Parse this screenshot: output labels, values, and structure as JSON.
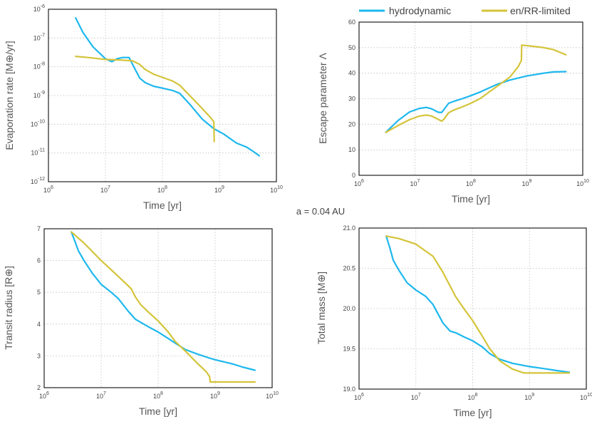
{
  "figure_label": "a = 0.04 AU",
  "legend": {
    "items": [
      {
        "label": "hydrodynamic",
        "color": "#1db8ee"
      },
      {
        "label": "en/RR-limited",
        "color": "#d4c43a"
      }
    ]
  },
  "chart_data": [
    {
      "type": "line",
      "id": "evap",
      "xlabel": "Time [yr]",
      "ylabel": "Evaporation rate [M⊕/yr]",
      "xscale": "log",
      "yscale": "log",
      "xlim": [
        1000000.0,
        10000000000.0
      ],
      "ylim": [
        1e-12,
        1e-06
      ],
      "xticks": [
        {
          "v": 1000000.0,
          "b": "10",
          "e": "6"
        },
        {
          "v": 10000000.0,
          "b": "10",
          "e": "7"
        },
        {
          "v": 100000000.0,
          "b": "10",
          "e": "8"
        },
        {
          "v": 1000000000.0,
          "b": "10",
          "e": "9"
        },
        {
          "v": 10000000000.0,
          "b": "10",
          "e": "10"
        }
      ],
      "yticks": [
        {
          "v": 1e-12,
          "b": "10",
          "e": "-12"
        },
        {
          "v": 1e-11,
          "b": "10",
          "e": "-11"
        },
        {
          "v": 1e-10,
          "b": "10",
          "e": "-10"
        },
        {
          "v": 1e-09,
          "b": "10",
          "e": "-9"
        },
        {
          "v": 1e-08,
          "b": "10",
          "e": "-8"
        },
        {
          "v": 1e-07,
          "b": "10",
          "e": "-7"
        },
        {
          "v": 1e-06,
          "b": "10",
          "e": "-6"
        }
      ],
      "series": [
        {
          "name": "hydrodynamic",
          "color": "#1db8ee",
          "points": [
            [
              3000000.0,
              5e-07
            ],
            [
              4000000.0,
              1.6e-07
            ],
            [
              6000000.0,
              5e-08
            ],
            [
              10000000.0,
              1.9e-08
            ],
            [
              13000000.0,
              1.5e-08
            ],
            [
              16000000.0,
              1.9e-08
            ],
            [
              20000000.0,
              2.1e-08
            ],
            [
              26000000.0,
              2.1e-08
            ],
            [
              30000000.0,
              1.2e-08
            ],
            [
              40000000.0,
              4e-09
            ],
            [
              50000000.0,
              2.8e-09
            ],
            [
              70000000.0,
              2.1e-09
            ],
            [
              100000000.0,
              1.8e-09
            ],
            [
              150000000.0,
              1.5e-09
            ],
            [
              200000000.0,
              1.2e-09
            ],
            [
              300000000.0,
              5e-10
            ],
            [
              500000000.0,
              1.5e-10
            ],
            [
              800000000.0,
              7e-11
            ],
            [
              1200000000.0,
              4.5e-11
            ],
            [
              2000000000.0,
              2.2e-11
            ],
            [
              3000000000.0,
              1.6e-11
            ],
            [
              4000000000.0,
              1.1e-11
            ],
            [
              5000000000.0,
              8e-12
            ]
          ]
        },
        {
          "name": "en/RR-limited",
          "color": "#d4c43a",
          "points": [
            [
              3000000.0,
              2.3e-08
            ],
            [
              5000000.0,
              2.1e-08
            ],
            [
              10000000.0,
              1.8e-08
            ],
            [
              20000000.0,
              1.7e-08
            ],
            [
              30000000.0,
              1.6e-08
            ],
            [
              40000000.0,
              1.2e-08
            ],
            [
              50000000.0,
              8e-09
            ],
            [
              70000000.0,
              5.5e-09
            ],
            [
              100000000.0,
              4.3e-09
            ],
            [
              150000000.0,
              3.2e-09
            ],
            [
              200000000.0,
              2.3e-09
            ],
            [
              300000000.0,
              1e-09
            ],
            [
              500000000.0,
              3.5e-10
            ],
            [
              700000000.0,
              1.7e-10
            ],
            [
              800000000.0,
              1.2e-10
            ],
            [
              810000000.0,
              2.5e-11
            ]
          ]
        }
      ]
    },
    {
      "type": "line",
      "id": "escape",
      "xlabel": "Time [yr]",
      "ylabel": "Escape parameter Λ",
      "xscale": "log",
      "yscale": "linear",
      "xlim": [
        1000000.0,
        10000000000.0
      ],
      "ylim": [
        0,
        60
      ],
      "xticks": [
        {
          "v": 1000000.0,
          "b": "10",
          "e": "6"
        },
        {
          "v": 10000000.0,
          "b": "10",
          "e": "7"
        },
        {
          "v": 100000000.0,
          "b": "10",
          "e": "8"
        },
        {
          "v": 1000000000.0,
          "b": "10",
          "e": "9"
        },
        {
          "v": 10000000000.0,
          "b": "10",
          "e": "10"
        }
      ],
      "yticks": [
        {
          "v": 0,
          "b": "0"
        },
        {
          "v": 10,
          "b": "10"
        },
        {
          "v": 20,
          "b": "20"
        },
        {
          "v": 30,
          "b": "30"
        },
        {
          "v": 40,
          "b": "40"
        },
        {
          "v": 50,
          "b": "50"
        },
        {
          "v": 60,
          "b": "60"
        }
      ],
      "series": [
        {
          "name": "hydrodynamic",
          "color": "#1db8ee",
          "points": [
            [
              3000000.0,
              16.8
            ],
            [
              5000000.0,
              21.5
            ],
            [
              8000000.0,
              24.8
            ],
            [
              12000000.0,
              26.2
            ],
            [
              16000000.0,
              26.6
            ],
            [
              20000000.0,
              26.0
            ],
            [
              26000000.0,
              24.7
            ],
            [
              30000000.0,
              24.6
            ],
            [
              35000000.0,
              26.5
            ],
            [
              40000000.0,
              28.2
            ],
            [
              50000000.0,
              29.0
            ],
            [
              70000000.0,
              30.0
            ],
            [
              100000000.0,
              31.2
            ],
            [
              150000000.0,
              32.7
            ],
            [
              200000000.0,
              34.0
            ],
            [
              300000000.0,
              35.7
            ],
            [
              500000000.0,
              37.3
            ],
            [
              1000000000.0,
              38.9
            ],
            [
              2000000000.0,
              40.0
            ],
            [
              3000000000.0,
              40.5
            ],
            [
              5000000000.0,
              40.6
            ]
          ]
        },
        {
          "name": "en/RR-limited",
          "color": "#d4c43a",
          "points": [
            [
              3000000.0,
              16.8
            ],
            [
              5000000.0,
              19.5
            ],
            [
              8000000.0,
              21.8
            ],
            [
              12000000.0,
              23.2
            ],
            [
              16000000.0,
              23.6
            ],
            [
              20000000.0,
              23.2
            ],
            [
              26000000.0,
              21.9
            ],
            [
              30000000.0,
              21.2
            ],
            [
              33000000.0,
              22.0
            ],
            [
              40000000.0,
              24.5
            ],
            [
              50000000.0,
              25.6
            ],
            [
              70000000.0,
              26.8
            ],
            [
              100000000.0,
              28.2
            ],
            [
              150000000.0,
              30.2
            ],
            [
              200000000.0,
              32.2
            ],
            [
              300000000.0,
              35.0
            ],
            [
              500000000.0,
              38.5
            ],
            [
              700000000.0,
              42.5
            ],
            [
              800000000.0,
              45.0
            ],
            [
              810000000.0,
              51.0
            ],
            [
              1000000000.0,
              50.8
            ],
            [
              2000000000.0,
              50.0
            ],
            [
              3000000000.0,
              49.2
            ],
            [
              5000000000.0,
              47.2
            ]
          ]
        }
      ]
    },
    {
      "type": "line",
      "id": "radius",
      "xlabel": "Time [yr]",
      "ylabel": "Transit radius [R⊕]",
      "xscale": "log",
      "yscale": "linear",
      "xlim": [
        1000000.0,
        10000000000.0
      ],
      "ylim": [
        2,
        7
      ],
      "xticks": [
        {
          "v": 1000000.0,
          "b": "10",
          "e": "6"
        },
        {
          "v": 10000000.0,
          "b": "10",
          "e": "7"
        },
        {
          "v": 100000000.0,
          "b": "10",
          "e": "8"
        },
        {
          "v": 1000000000.0,
          "b": "10",
          "e": "9"
        },
        {
          "v": 10000000000.0,
          "b": "10",
          "e": "10"
        }
      ],
      "yticks": [
        {
          "v": 2,
          "b": "2"
        },
        {
          "v": 3,
          "b": "3"
        },
        {
          "v": 4,
          "b": "4"
        },
        {
          "v": 5,
          "b": "5"
        },
        {
          "v": 6,
          "b": "6"
        },
        {
          "v": 7,
          "b": "7"
        }
      ],
      "series": [
        {
          "name": "hydrodynamic",
          "color": "#1db8ee",
          "points": [
            [
              3000000.0,
              6.9
            ],
            [
              4000000.0,
              6.3
            ],
            [
              5000000.0,
              6.0
            ],
            [
              7000000.0,
              5.6
            ],
            [
              10000000.0,
              5.25
            ],
            [
              15000000.0,
              5.0
            ],
            [
              20000000.0,
              4.8
            ],
            [
              30000000.0,
              4.4
            ],
            [
              40000000.0,
              4.15
            ],
            [
              50000000.0,
              4.05
            ],
            [
              70000000.0,
              3.9
            ],
            [
              100000000.0,
              3.75
            ],
            [
              150000000.0,
              3.55
            ],
            [
              200000000.0,
              3.4
            ],
            [
              300000000.0,
              3.2
            ],
            [
              500000000.0,
              3.05
            ],
            [
              800000000.0,
              2.93
            ],
            [
              1000000000.0,
              2.88
            ],
            [
              2000000000.0,
              2.75
            ],
            [
              3000000000.0,
              2.65
            ],
            [
              5000000000.0,
              2.55
            ]
          ]
        },
        {
          "name": "en/RR-limited",
          "color": "#d4c43a",
          "points": [
            [
              3000000.0,
              6.9
            ],
            [
              5000000.0,
              6.55
            ],
            [
              10000000.0,
              6.0
            ],
            [
              20000000.0,
              5.5
            ],
            [
              30000000.0,
              5.2
            ],
            [
              34000000.0,
              5.1
            ],
            [
              40000000.0,
              4.85
            ],
            [
              50000000.0,
              4.6
            ],
            [
              70000000.0,
              4.35
            ],
            [
              100000000.0,
              4.1
            ],
            [
              150000000.0,
              3.75
            ],
            [
              200000000.0,
              3.45
            ],
            [
              300000000.0,
              3.15
            ],
            [
              500000000.0,
              2.75
            ],
            [
              700000000.0,
              2.5
            ],
            [
              800000000.0,
              2.35
            ],
            [
              820000000.0,
              2.18
            ],
            [
              1000000000.0,
              2.18
            ],
            [
              2000000000.0,
              2.18
            ],
            [
              3000000000.0,
              2.18
            ],
            [
              5000000000.0,
              2.18
            ]
          ]
        }
      ]
    },
    {
      "type": "line",
      "id": "mass",
      "xlabel": "Time [yr]",
      "ylabel": "Total mass [M⊕]",
      "xscale": "log",
      "yscale": "linear",
      "xlim": [
        1000000.0,
        10000000000.0
      ],
      "ylim": [
        19.0,
        21.0
      ],
      "xticks": [
        {
          "v": 1000000.0,
          "b": "10",
          "e": "6"
        },
        {
          "v": 10000000.0,
          "b": "10",
          "e": "7"
        },
        {
          "v": 100000000.0,
          "b": "10",
          "e": "8"
        },
        {
          "v": 1000000000.0,
          "b": "10",
          "e": "9"
        },
        {
          "v": 10000000000.0,
          "b": "10",
          "e": "10"
        }
      ],
      "yticks": [
        {
          "v": 19.0,
          "b": "19.0"
        },
        {
          "v": 19.5,
          "b": "19.5"
        },
        {
          "v": 20.0,
          "b": "20.0"
        },
        {
          "v": 20.5,
          "b": "20.5"
        },
        {
          "v": 21.0,
          "b": "21.0"
        }
      ],
      "series": [
        {
          "name": "hydrodynamic",
          "color": "#1db8ee",
          "points": [
            [
              3000000.0,
              20.9
            ],
            [
              3500000.0,
              20.75
            ],
            [
              4000000.0,
              20.6
            ],
            [
              5000000.0,
              20.48
            ],
            [
              7000000.0,
              20.32
            ],
            [
              10000000.0,
              20.23
            ],
            [
              15000000.0,
              20.15
            ],
            [
              20000000.0,
              20.05
            ],
            [
              30000000.0,
              19.82
            ],
            [
              40000000.0,
              19.72
            ],
            [
              50000000.0,
              19.7
            ],
            [
              70000000.0,
              19.65
            ],
            [
              100000000.0,
              19.6
            ],
            [
              150000000.0,
              19.52
            ],
            [
              200000000.0,
              19.44
            ],
            [
              300000000.0,
              19.37
            ],
            [
              500000000.0,
              19.32
            ],
            [
              1000000000.0,
              19.28
            ],
            [
              2000000000.0,
              19.25
            ],
            [
              3000000000.0,
              19.23
            ],
            [
              5000000000.0,
              19.21
            ]
          ]
        },
        {
          "name": "en/RR-limited",
          "color": "#d4c43a",
          "points": [
            [
              3000000.0,
              20.9
            ],
            [
              5000000.0,
              20.87
            ],
            [
              10000000.0,
              20.8
            ],
            [
              20000000.0,
              20.65
            ],
            [
              30000000.0,
              20.45
            ],
            [
              50000000.0,
              20.15
            ],
            [
              70000000.0,
              20.0
            ],
            [
              100000000.0,
              19.85
            ],
            [
              150000000.0,
              19.65
            ],
            [
              200000000.0,
              19.5
            ],
            [
              300000000.0,
              19.35
            ],
            [
              500000000.0,
              19.25
            ],
            [
              800000000.0,
              19.2
            ],
            [
              1000000000.0,
              19.2
            ],
            [
              2000000000.0,
              19.2
            ],
            [
              3000000000.0,
              19.2
            ],
            [
              5000000000.0,
              19.2
            ]
          ]
        }
      ]
    }
  ]
}
